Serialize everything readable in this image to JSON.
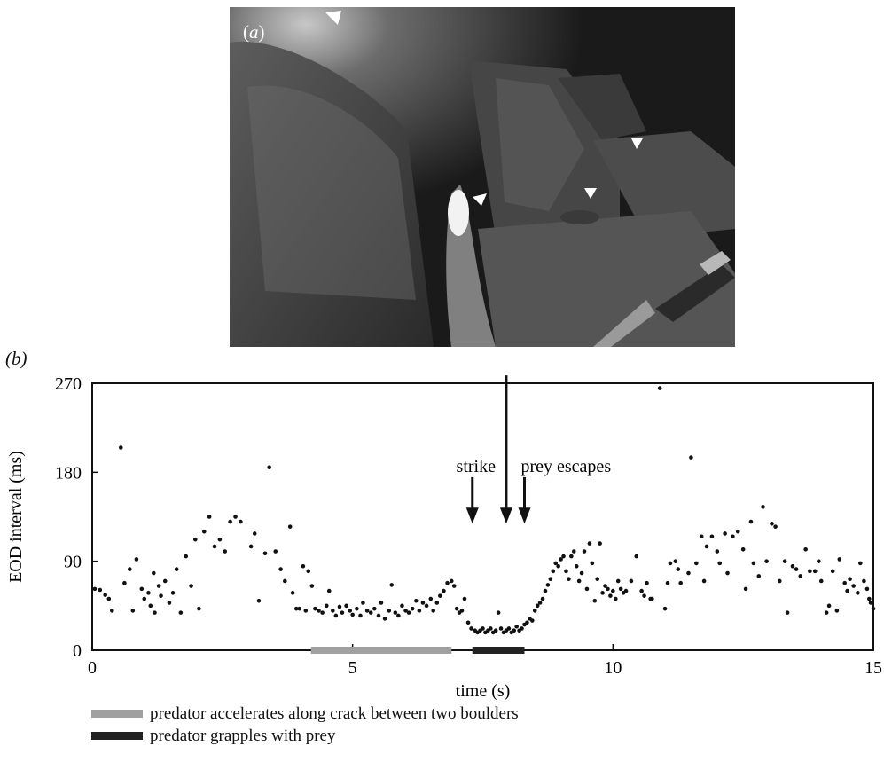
{
  "panel_a": {
    "label_prefix": "(",
    "label_letter": "a",
    "label_suffix": ")",
    "image_colors": {
      "dark": "#1a1a1a",
      "mid": "#4a4a4a",
      "light": "#bdbdbd"
    }
  },
  "panel_b": {
    "label": "(b)"
  },
  "chart_data": {
    "type": "scatter",
    "title": "",
    "xlabel": "time (s)",
    "ylabel": "EOD interval (ms)",
    "xlim": [
      0,
      15
    ],
    "ylim": [
      0,
      270
    ],
    "x_ticks": [
      0,
      5,
      10,
      15
    ],
    "y_ticks": [
      0,
      90,
      180,
      270
    ],
    "grid": false,
    "point_color": "#111111",
    "series": [
      {
        "points": [
          [
            0.05,
            62
          ],
          [
            0.15,
            61
          ],
          [
            0.25,
            56
          ],
          [
            0.32,
            52
          ],
          [
            0.38,
            40
          ],
          [
            0.55,
            205
          ],
          [
            0.62,
            68
          ],
          [
            0.72,
            82
          ],
          [
            0.78,
            40
          ],
          [
            0.85,
            92
          ],
          [
            0.95,
            62
          ],
          [
            1.0,
            52
          ],
          [
            1.08,
            58
          ],
          [
            1.12,
            45
          ],
          [
            1.18,
            78
          ],
          [
            1.2,
            38
          ],
          [
            1.28,
            65
          ],
          [
            1.32,
            55
          ],
          [
            1.4,
            70
          ],
          [
            1.48,
            48
          ],
          [
            1.55,
            58
          ],
          [
            1.62,
            82
          ],
          [
            1.7,
            38
          ],
          [
            1.8,
            95
          ],
          [
            1.9,
            65
          ],
          [
            1.98,
            112
          ],
          [
            2.05,
            42
          ],
          [
            2.15,
            120
          ],
          [
            2.25,
            135
          ],
          [
            2.35,
            105
          ],
          [
            2.45,
            112
          ],
          [
            2.55,
            100
          ],
          [
            2.65,
            130
          ],
          [
            2.75,
            135
          ],
          [
            2.85,
            130
          ],
          [
            3.05,
            105
          ],
          [
            3.12,
            118
          ],
          [
            3.2,
            50
          ],
          [
            3.32,
            98
          ],
          [
            3.4,
            185
          ],
          [
            3.52,
            100
          ],
          [
            3.62,
            82
          ],
          [
            3.7,
            70
          ],
          [
            3.8,
            125
          ],
          [
            3.85,
            58
          ],
          [
            3.92,
            42
          ],
          [
            3.98,
            42
          ],
          [
            4.05,
            85
          ],
          [
            4.1,
            40
          ],
          [
            4.15,
            80
          ],
          [
            4.22,
            65
          ],
          [
            4.28,
            42
          ],
          [
            4.35,
            40
          ],
          [
            4.42,
            38
          ],
          [
            4.5,
            45
          ],
          [
            4.55,
            60
          ],
          [
            4.62,
            40
          ],
          [
            4.68,
            35
          ],
          [
            4.75,
            44
          ],
          [
            4.8,
            38
          ],
          [
            4.88,
            45
          ],
          [
            4.95,
            40
          ],
          [
            5.0,
            36
          ],
          [
            5.08,
            42
          ],
          [
            5.15,
            35
          ],
          [
            5.2,
            48
          ],
          [
            5.28,
            40
          ],
          [
            5.35,
            38
          ],
          [
            5.42,
            42
          ],
          [
            5.5,
            35
          ],
          [
            5.55,
            48
          ],
          [
            5.62,
            32
          ],
          [
            5.7,
            40
          ],
          [
            5.75,
            66
          ],
          [
            5.82,
            38
          ],
          [
            5.88,
            35
          ],
          [
            5.95,
            45
          ],
          [
            6.02,
            40
          ],
          [
            6.08,
            38
          ],
          [
            6.15,
            42
          ],
          [
            6.22,
            50
          ],
          [
            6.28,
            40
          ],
          [
            6.35,
            48
          ],
          [
            6.42,
            45
          ],
          [
            6.5,
            52
          ],
          [
            6.55,
            40
          ],
          [
            6.62,
            48
          ],
          [
            6.68,
            55
          ],
          [
            6.75,
            60
          ],
          [
            6.82,
            68
          ],
          [
            6.9,
            70
          ],
          [
            6.95,
            65
          ],
          [
            7.0,
            42
          ],
          [
            7.05,
            38
          ],
          [
            7.1,
            40
          ],
          [
            7.15,
            52
          ],
          [
            7.22,
            28
          ],
          [
            7.28,
            22
          ],
          [
            7.35,
            20
          ],
          [
            7.4,
            18
          ],
          [
            7.45,
            20
          ],
          [
            7.5,
            22
          ],
          [
            7.55,
            18
          ],
          [
            7.6,
            20
          ],
          [
            7.65,
            22
          ],
          [
            7.7,
            18
          ],
          [
            7.75,
            20
          ],
          [
            7.8,
            38
          ],
          [
            7.85,
            22
          ],
          [
            7.9,
            18
          ],
          [
            7.95,
            20
          ],
          [
            8.0,
            22
          ],
          [
            8.05,
            18
          ],
          [
            8.1,
            20
          ],
          [
            8.15,
            24
          ],
          [
            8.2,
            20
          ],
          [
            8.25,
            22
          ],
          [
            8.3,
            26
          ],
          [
            8.35,
            28
          ],
          [
            8.4,
            32
          ],
          [
            8.45,
            30
          ],
          [
            8.5,
            40
          ],
          [
            8.55,
            45
          ],
          [
            8.6,
            48
          ],
          [
            8.65,
            52
          ],
          [
            8.7,
            60
          ],
          [
            8.75,
            66
          ],
          [
            8.8,
            72
          ],
          [
            8.85,
            80
          ],
          [
            8.9,
            88
          ],
          [
            8.95,
            85
          ],
          [
            9.0,
            92
          ],
          [
            9.05,
            95
          ],
          [
            9.1,
            80
          ],
          [
            9.15,
            72
          ],
          [
            9.2,
            95
          ],
          [
            9.25,
            100
          ],
          [
            9.3,
            85
          ],
          [
            9.35,
            70
          ],
          [
            9.4,
            78
          ],
          [
            9.45,
            100
          ],
          [
            9.5,
            62
          ],
          [
            9.55,
            108
          ],
          [
            9.6,
            88
          ],
          [
            9.65,
            50
          ],
          [
            9.7,
            72
          ],
          [
            9.75,
            108
          ],
          [
            9.8,
            58
          ],
          [
            9.85,
            65
          ],
          [
            9.9,
            62
          ],
          [
            9.95,
            55
          ],
          [
            10.0,
            60
          ],
          [
            10.05,
            52
          ],
          [
            10.1,
            70
          ],
          [
            10.15,
            62
          ],
          [
            10.2,
            58
          ],
          [
            10.25,
            60
          ],
          [
            10.35,
            70
          ],
          [
            10.45,
            95
          ],
          [
            10.55,
            60
          ],
          [
            10.6,
            55
          ],
          [
            10.65,
            68
          ],
          [
            10.72,
            52
          ],
          [
            10.75,
            52
          ],
          [
            10.9,
            265
          ],
          [
            11.0,
            42
          ],
          [
            11.05,
            68
          ],
          [
            11.1,
            88
          ],
          [
            11.2,
            90
          ],
          [
            11.25,
            82
          ],
          [
            11.3,
            68
          ],
          [
            11.45,
            78
          ],
          [
            11.5,
            195
          ],
          [
            11.6,
            88
          ],
          [
            11.7,
            115
          ],
          [
            11.75,
            70
          ],
          [
            11.8,
            105
          ],
          [
            11.9,
            115
          ],
          [
            12.0,
            100
          ],
          [
            12.05,
            88
          ],
          [
            12.15,
            118
          ],
          [
            12.2,
            78
          ],
          [
            12.3,
            115
          ],
          [
            12.4,
            120
          ],
          [
            12.5,
            102
          ],
          [
            12.55,
            62
          ],
          [
            12.65,
            130
          ],
          [
            12.7,
            88
          ],
          [
            12.8,
            75
          ],
          [
            12.88,
            145
          ],
          [
            12.95,
            90
          ],
          [
            13.05,
            128
          ],
          [
            13.12,
            125
          ],
          [
            13.2,
            70
          ],
          [
            13.3,
            90
          ],
          [
            13.35,
            38
          ],
          [
            13.45,
            85
          ],
          [
            13.52,
            82
          ],
          [
            13.6,
            75
          ],
          [
            13.7,
            102
          ],
          [
            13.78,
            80
          ],
          [
            13.88,
            80
          ],
          [
            13.95,
            90
          ],
          [
            14.0,
            70
          ],
          [
            14.1,
            38
          ],
          [
            14.15,
            45
          ],
          [
            14.22,
            80
          ],
          [
            14.3,
            40
          ],
          [
            14.35,
            92
          ],
          [
            14.45,
            68
          ],
          [
            14.5,
            60
          ],
          [
            14.55,
            72
          ],
          [
            14.62,
            65
          ],
          [
            14.7,
            58
          ],
          [
            14.75,
            88
          ],
          [
            14.82,
            70
          ],
          [
            14.88,
            62
          ],
          [
            14.92,
            52
          ],
          [
            14.95,
            48
          ],
          [
            15.0,
            42
          ]
        ]
      }
    ],
    "bars": [
      {
        "x_start": 4.2,
        "x_end": 6.9,
        "color": "#a0a0a0"
      },
      {
        "x_start": 7.3,
        "x_end": 8.3,
        "color": "#222222"
      }
    ],
    "annotations": [
      {
        "text": "strike",
        "x": 7.3,
        "arrow_y_top": 175,
        "arrow_y_bottom": 128
      },
      {
        "text": "prey escapes",
        "x": 8.3,
        "arrow_y_top": 175,
        "arrow_y_bottom": 128
      },
      {
        "text": "",
        "x": 7.95,
        "arrow_y_top": 278,
        "arrow_y_bottom": 128
      }
    ]
  },
  "legend": [
    {
      "text": "predator accelerates along crack between two boulders",
      "color": "#a0a0a0"
    },
    {
      "text": "predator grapples with prey",
      "color": "#222222"
    }
  ]
}
